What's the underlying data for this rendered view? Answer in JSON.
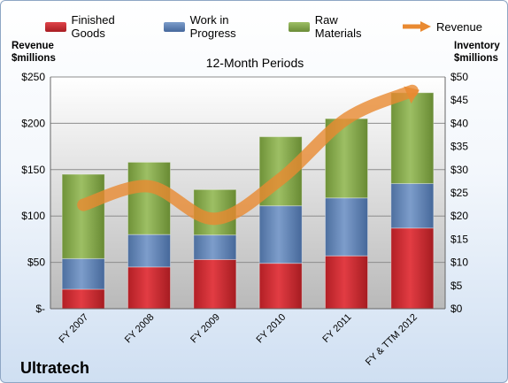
{
  "chart_data": {
    "type": "bar",
    "subtitle": "12-Month Periods",
    "company": "Ultratech",
    "left_axis_title": [
      "Revenue",
      "$millions"
    ],
    "right_axis_title": [
      "Inventory",
      "$millions"
    ],
    "categories": [
      "FY 2007",
      "FY 2008",
      "FY 2009",
      "FY 2010",
      "FY 2011",
      "FY & TTM 2012"
    ],
    "series": [
      {
        "name": "Finished Goods",
        "color": "#c8262b",
        "values": [
          4.2,
          9.0,
          10.6,
          9.8,
          11.4,
          17.4
        ]
      },
      {
        "name": "Work in Progress",
        "color": "#5c7fb4",
        "values": [
          6.6,
          7.0,
          5.3,
          12.4,
          12.5,
          9.6
        ]
      },
      {
        "name": "Raw Materials",
        "color": "#82a64a",
        "values": [
          18.2,
          15.6,
          9.8,
          14.9,
          17.1,
          19.6
        ]
      }
    ],
    "line_series": {
      "name": "Revenue",
      "color": "#e98a31",
      "values": [
        112,
        132,
        97,
        140,
        205,
        235
      ]
    },
    "left_axis": {
      "min": 0,
      "max": 250,
      "ticks": [
        "$-",
        "$50",
        "$100",
        "$150",
        "$200",
        "$250"
      ]
    },
    "right_axis": {
      "min": 0,
      "max": 50,
      "ticks": [
        "$0",
        "$5",
        "$10",
        "$15",
        "$20",
        "$25",
        "$30",
        "$35",
        "$40",
        "$45",
        "$50"
      ]
    },
    "grid": true,
    "legend_position": "top"
  }
}
